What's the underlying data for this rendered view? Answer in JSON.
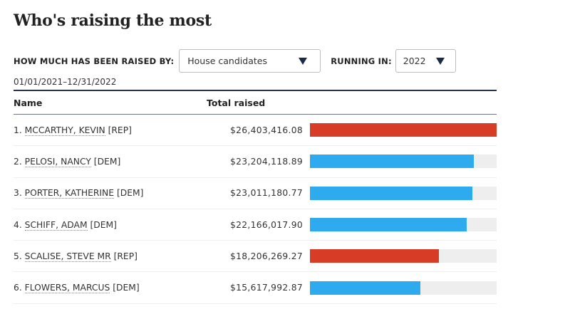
{
  "header": {
    "title": "Who's raising the most"
  },
  "filters": {
    "raised_by_label": "HOW MUCH HAS BEEN RAISED BY:",
    "raised_by_value": "House candidates",
    "running_in_label": "RUNNING IN:",
    "running_in_value": "2022",
    "date_range": "01/01/2021–12/31/2022"
  },
  "table": {
    "columns": [
      "Name",
      "Total raised"
    ]
  },
  "colors": {
    "REP": "#d63c26",
    "DEM": "#2eaaee",
    "track": "#eeeeee"
  },
  "chart_data": {
    "type": "bar",
    "title": "Who's raising the most",
    "xlabel": "Total raised",
    "ylabel": "Name",
    "orientation": "horizontal",
    "categories": [
      "MCCARTHY, KEVIN",
      "PELOSI, NANCY",
      "PORTER, KATHERINE",
      "SCHIFF, ADAM",
      "SCALISE, STEVE MR",
      "FLOWERS, MARCUS"
    ],
    "xlim": [
      0,
      26403416.08
    ],
    "rows": [
      {
        "rank": "1.",
        "name": "MCCARTHY, KEVIN",
        "party": "REP",
        "party_label": "[REP]",
        "amount_label": "$26,403,416.08",
        "value": 26403416.08
      },
      {
        "rank": "2.",
        "name": "PELOSI, NANCY",
        "party": "DEM",
        "party_label": "[DEM]",
        "amount_label": "$23,204,118.89",
        "value": 23204118.89
      },
      {
        "rank": "3.",
        "name": "PORTER, KATHERINE",
        "party": "DEM",
        "party_label": "[DEM]",
        "amount_label": "$23,011,180.77",
        "value": 23011180.77
      },
      {
        "rank": "4.",
        "name": "SCHIFF, ADAM",
        "party": "DEM",
        "party_label": "[DEM]",
        "amount_label": "$22,166,017.90",
        "value": 22166017.9
      },
      {
        "rank": "5.",
        "name": "SCALISE, STEVE MR",
        "party": "REP",
        "party_label": "[REP]",
        "amount_label": "$18,206,269.27",
        "value": 18206269.27
      },
      {
        "rank": "6.",
        "name": "FLOWERS, MARCUS",
        "party": "DEM",
        "party_label": "[DEM]",
        "amount_label": "$15,617,992.87",
        "value": 15617992.87
      }
    ]
  }
}
